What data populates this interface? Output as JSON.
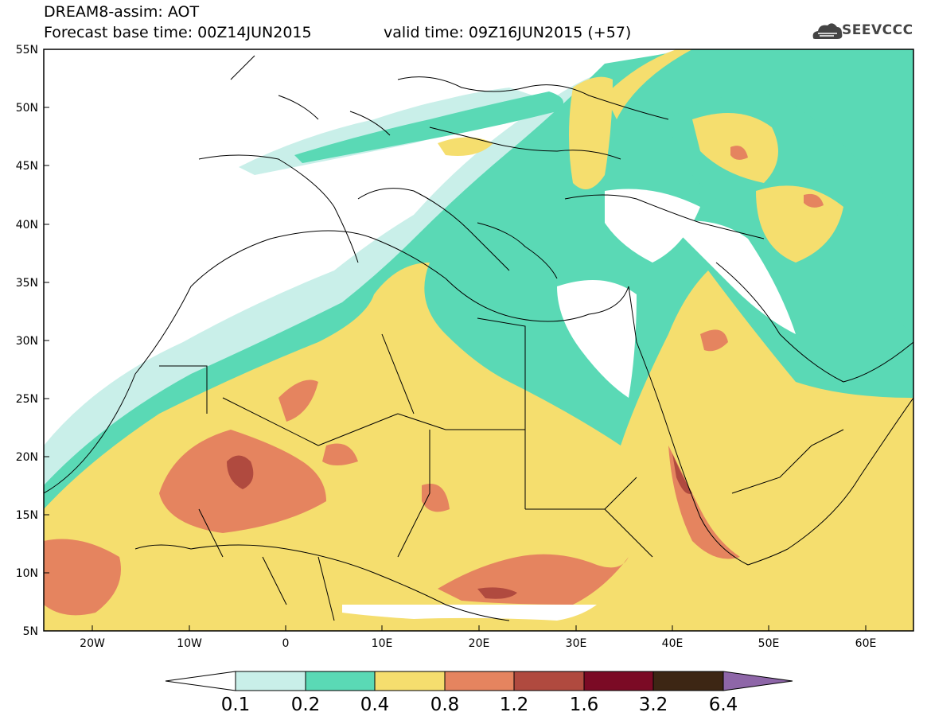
{
  "header": {
    "line1": "DREAM8-assim: AOT",
    "line2": "Forecast base time: 00Z14JUN2015",
    "valid": "valid time: 09Z16JUN2015 (+57)"
  },
  "logo": {
    "text": "SEEVCCC",
    "icon": "cloud-logo-icon"
  },
  "map": {
    "lat_labels": [
      "55N",
      "50N",
      "45N",
      "40N",
      "35N",
      "30N",
      "25N",
      "20N",
      "15N",
      "10N",
      "5N"
    ],
    "lon_labels": [
      "20W",
      "10W",
      "0",
      "10E",
      "20E",
      "30E",
      "40E",
      "50E",
      "60E"
    ],
    "colors": {
      "c0": "#c9efe9",
      "c1": "#5ad9b5",
      "c2": "#f5de6e",
      "c3": "#e5845f",
      "c4": "#b04a3f",
      "c5": "#7b0a25",
      "c6": "#3d2614",
      "c7": "#8e66a8"
    }
  },
  "colorbar": {
    "labels": [
      "0.1",
      "0.2",
      "0.4",
      "0.8",
      "1.2",
      "1.6",
      "3.2",
      "6.4"
    ]
  }
}
